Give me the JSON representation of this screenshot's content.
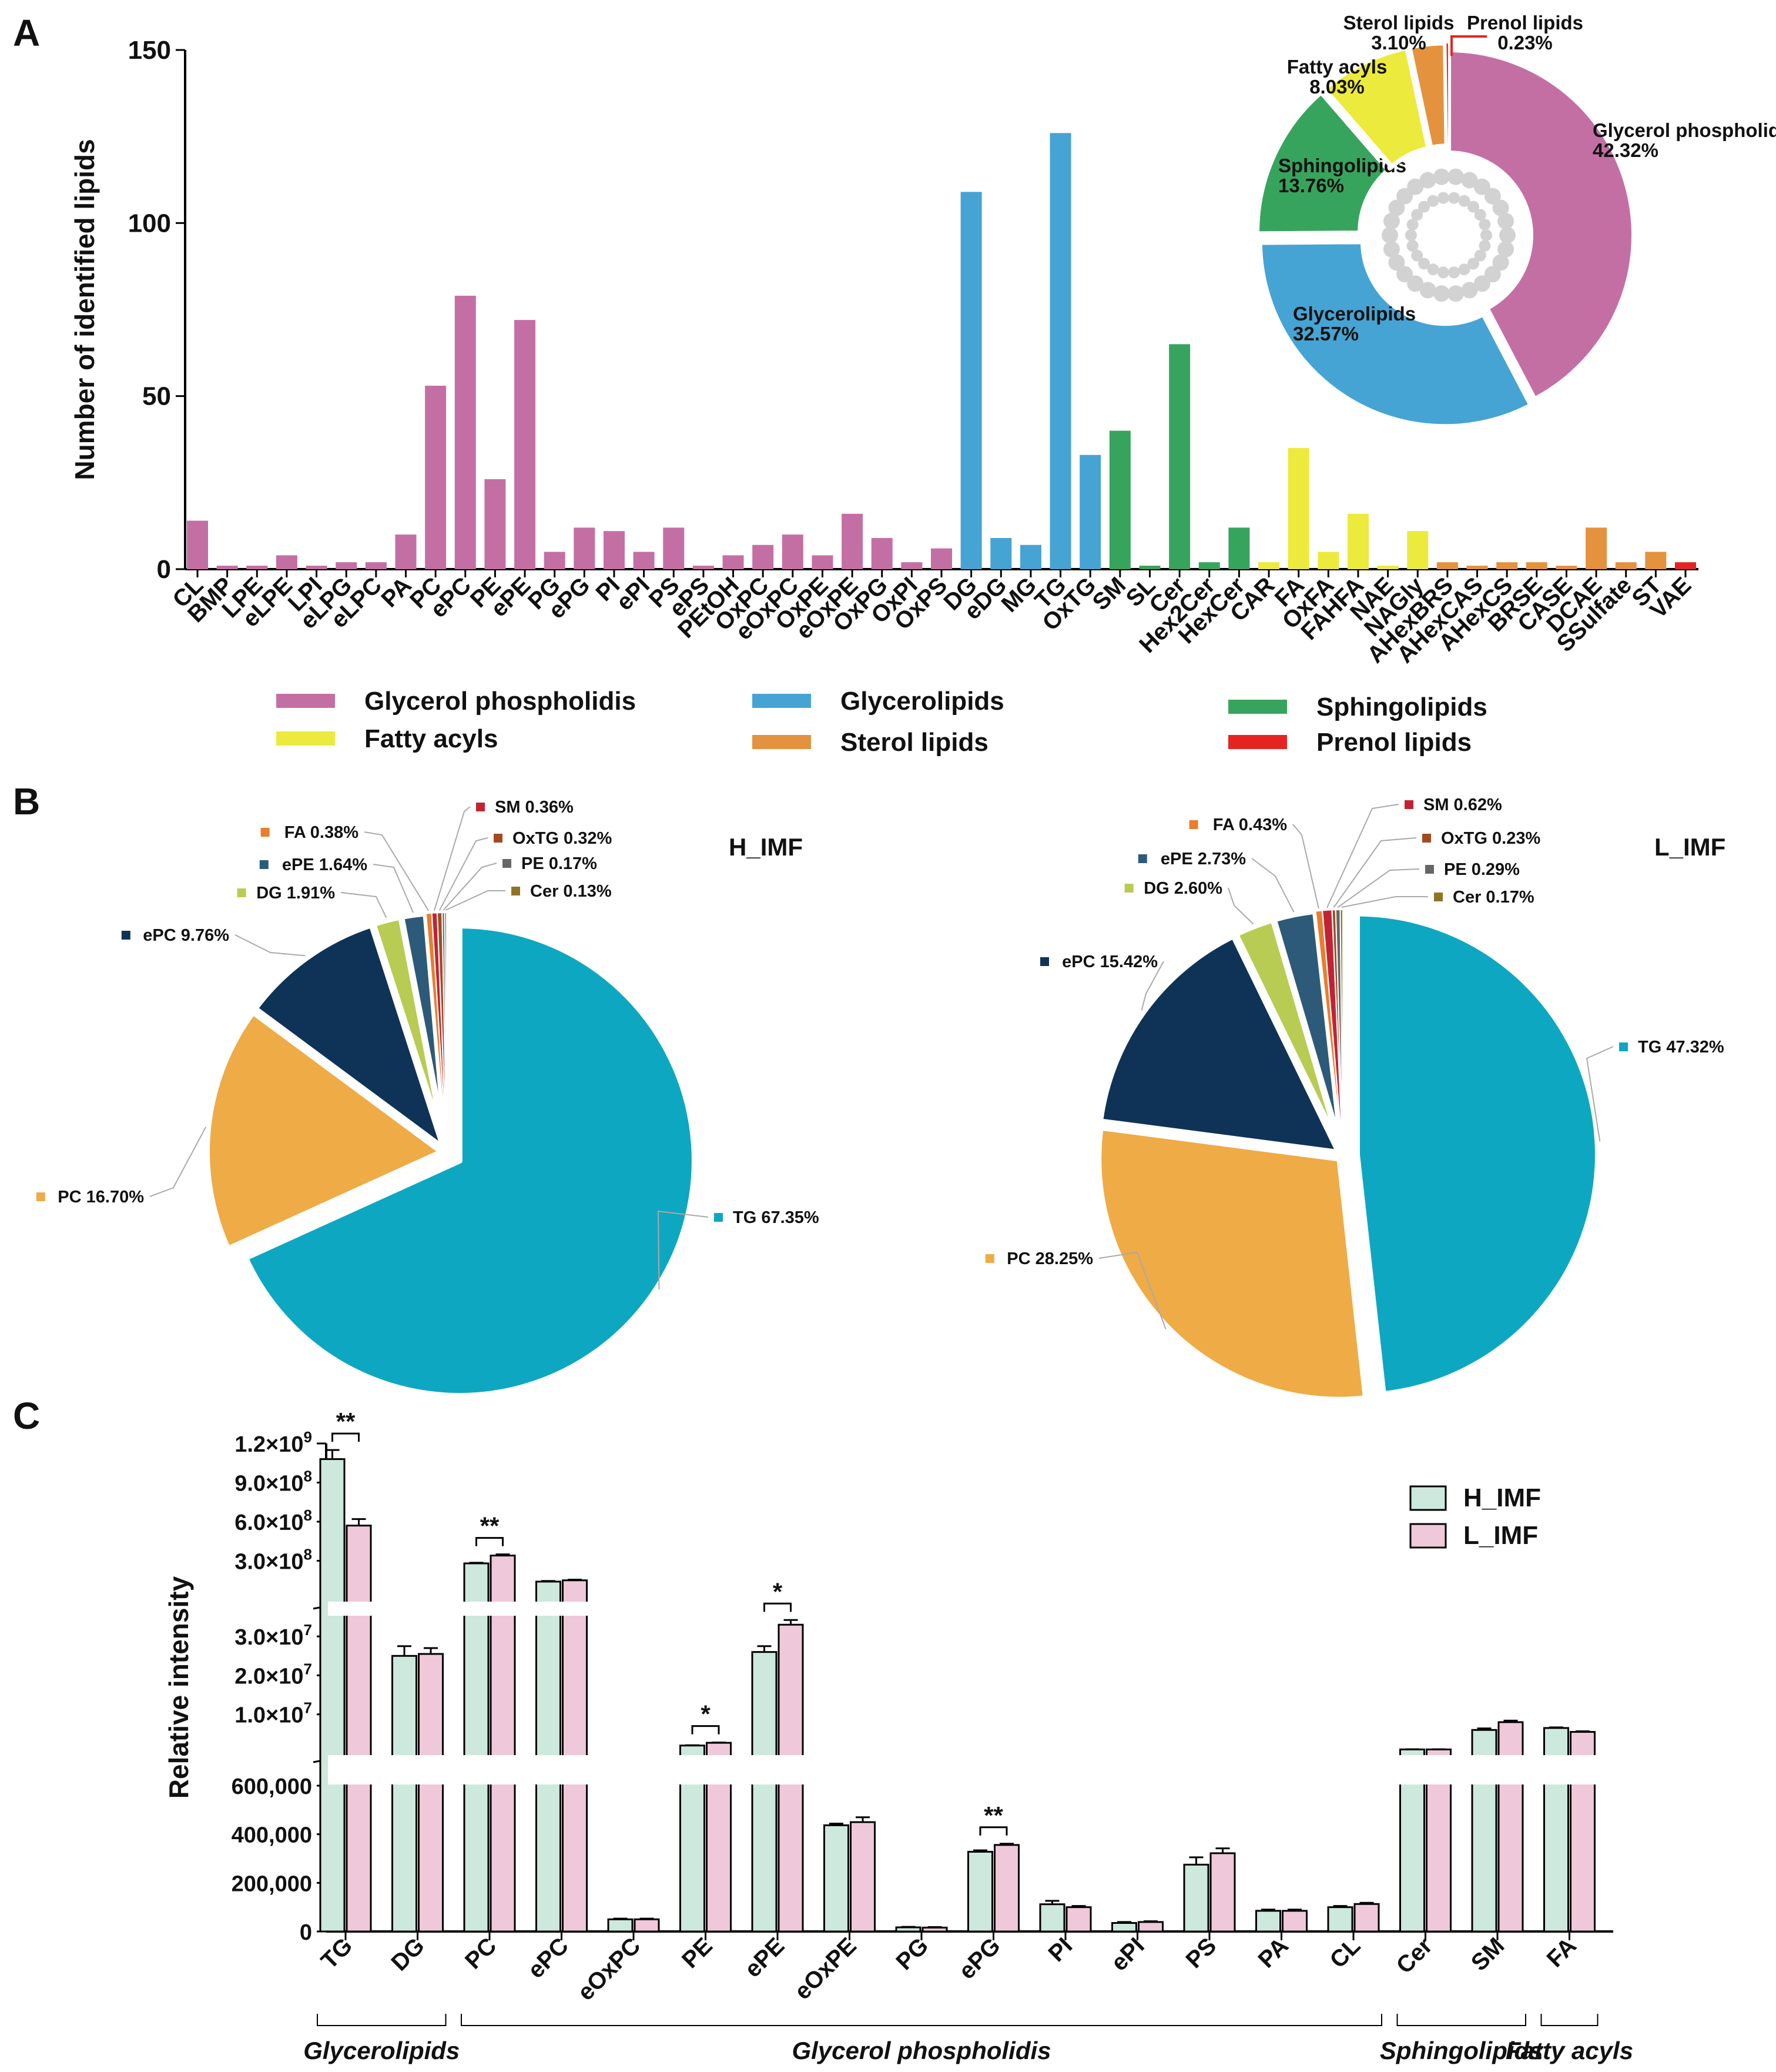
{
  "panels": {
    "a": "A",
    "b": "B",
    "c": "C"
  },
  "chart_data": [
    {
      "id": "A",
      "type": "bar",
      "title": "",
      "xlabel": "",
      "ylabel": "Number of identified lipids",
      "ylim": [
        0,
        150
      ],
      "yticks": [
        "0",
        "50",
        "100",
        "150"
      ],
      "categories": [
        "CL",
        "BMP",
        "LPE",
        "eLPE",
        "LPI",
        "eLPG",
        "eLPC",
        "PA",
        "PC",
        "ePC",
        "PE",
        "ePE",
        "PG",
        "ePG",
        "PI",
        "ePI",
        "PS",
        "ePS",
        "PEtOH",
        "OxPC",
        "eOxPC",
        "OxPE",
        "eOxPE",
        "OxPG",
        "OxPI",
        "OxPS",
        "DG",
        "eDG",
        "MG",
        "TG",
        "OxTG",
        "SM",
        "SL",
        "Cer",
        "Hex2Cer",
        "HexCer",
        "CAR",
        "FA",
        "OxFA",
        "FAHFA",
        "NAE",
        "NAGly",
        "AHexBRS",
        "AHexCAS",
        "AHexCS",
        "BRSE",
        "CASE",
        "DCAE",
        "SSulfate",
        "ST",
        "VAE"
      ],
      "values": [
        14,
        1,
        1,
        4,
        1,
        2,
        2,
        10,
        53,
        79,
        26,
        72,
        5,
        12,
        11,
        5,
        12,
        1,
        4,
        7,
        10,
        4,
        16,
        9,
        2,
        6,
        109,
        9,
        7,
        126,
        33,
        40,
        1,
        65,
        2,
        12,
        2,
        35,
        5,
        16,
        1,
        11,
        2,
        1,
        2,
        2,
        1,
        12,
        2,
        5,
        2
      ],
      "groups": [
        "gp",
        "gp",
        "gp",
        "gp",
        "gp",
        "gp",
        "gp",
        "gp",
        "gp",
        "gp",
        "gp",
        "gp",
        "gp",
        "gp",
        "gp",
        "gp",
        "gp",
        "gp",
        "gp",
        "gp",
        "gp",
        "gp",
        "gp",
        "gp",
        "gp",
        "gp",
        "gl",
        "gl",
        "gl",
        "gl",
        "gl",
        "sp",
        "sp",
        "sp",
        "sp",
        "sp",
        "fa",
        "fa",
        "fa",
        "fa",
        "fa",
        "fa",
        "st",
        "st",
        "st",
        "st",
        "st",
        "st",
        "st",
        "st",
        "pr"
      ],
      "legend": [
        {
          "key": "gp",
          "label": "Glycerol phospholidis",
          "color": "#c46fa4"
        },
        {
          "key": "gl",
          "label": "Glycerolipids",
          "color": "#45a4d3"
        },
        {
          "key": "sp",
          "label": "Sphingolipids",
          "color": "#37a45e"
        },
        {
          "key": "fa",
          "label": "Fatty acyls",
          "color": "#ecea3c"
        },
        {
          "key": "st",
          "label": "Sterol lipids",
          "color": "#e4923e"
        },
        {
          "key": "pr",
          "label": "Prenol lipids",
          "color": "#e52421"
        }
      ]
    },
    {
      "id": "A-inset",
      "type": "pie",
      "variant": "donut",
      "slices": [
        {
          "name": "Glycerol phospholidis",
          "pct": "42.32%",
          "value": 42.32,
          "color": "#c46fa4"
        },
        {
          "name": "Glycerolipids",
          "pct": "32.57%",
          "value": 32.57,
          "color": "#45a4d3"
        },
        {
          "name": "Sphingolipids",
          "pct": "13.76%",
          "value": 13.76,
          "color": "#37a45e"
        },
        {
          "name": "Fatty acyls",
          "pct": "8.03%",
          "value": 8.03,
          "color": "#ecea3c"
        },
        {
          "name": "Sterol lipids",
          "pct": "3.10%",
          "value": 3.1,
          "color": "#e4923e"
        },
        {
          "name": "Prenol lipids",
          "pct": "0.23%",
          "value": 0.23,
          "color": "#e52421"
        }
      ]
    },
    {
      "id": "B-H",
      "type": "pie",
      "title": "H_IMF",
      "slices": [
        {
          "name": "TG",
          "pct": "67.35%",
          "value": 67.35,
          "color": "#0ea7c1"
        },
        {
          "name": "PC",
          "pct": "16.70%",
          "value": 16.7,
          "color": "#efab46"
        },
        {
          "name": "ePC",
          "pct": "9.76%",
          "value": 9.76,
          "color": "#0f3357"
        },
        {
          "name": "DG",
          "pct": "1.91%",
          "value": 1.91,
          "color": "#b8cc53"
        },
        {
          "name": "ePE",
          "pct": "1.64%",
          "value": 1.64,
          "color": "#2d5a78"
        },
        {
          "name": "FA",
          "pct": "0.38%",
          "value": 0.38,
          "color": "#ea7d2e"
        },
        {
          "name": "SM",
          "pct": "0.36%",
          "value": 0.36,
          "color": "#c22334"
        },
        {
          "name": "OxTG",
          "pct": "0.32%",
          "value": 0.32,
          "color": "#a34a20"
        },
        {
          "name": "PE",
          "pct": "0.17%",
          "value": 0.17,
          "color": "#666666"
        },
        {
          "name": "Cer",
          "pct": "0.13%",
          "value": 0.13,
          "color": "#8f7428"
        }
      ]
    },
    {
      "id": "B-L",
      "type": "pie",
      "title": "L_IMF",
      "slices": [
        {
          "name": "TG",
          "pct": "47.32%",
          "value": 47.32,
          "color": "#0ea7c1"
        },
        {
          "name": "PC",
          "pct": "28.25%",
          "value": 28.25,
          "color": "#efab46"
        },
        {
          "name": "ePC",
          "pct": "15.42%",
          "value": 15.42,
          "color": "#0f3357"
        },
        {
          "name": "DG",
          "pct": "2.60%",
          "value": 2.6,
          "color": "#b8cc53"
        },
        {
          "name": "ePE",
          "pct": "2.73%",
          "value": 2.73,
          "color": "#2d5a78"
        },
        {
          "name": "FA",
          "pct": "0.43%",
          "value": 0.43,
          "color": "#ea7d2e"
        },
        {
          "name": "SM",
          "pct": "0.62%",
          "value": 0.62,
          "color": "#c22334"
        },
        {
          "name": "OxTG",
          "pct": "0.23%",
          "value": 0.23,
          "color": "#a34a20"
        },
        {
          "name": "PE",
          "pct": "0.29%",
          "value": 0.29,
          "color": "#666666"
        },
        {
          "name": "Cer",
          "pct": "0.17%",
          "value": 0.17,
          "color": "#8f7428"
        }
      ]
    },
    {
      "id": "C",
      "type": "bar",
      "ylabel": "Relative intensity",
      "axis": "broken",
      "segments": [
        {
          "range": [
            0,
            600000
          ],
          "ticks": [
            0,
            200000,
            400000,
            600000
          ],
          "labels": [
            "0",
            "200,000",
            "400,000",
            "600,000"
          ]
        },
        {
          "range": [
            0,
            35000000
          ],
          "ticks": [
            10000000,
            20000000,
            30000000
          ],
          "labels": [
            "1.0×10",
            "2.0×10",
            "3.0×10"
          ],
          "exp": "7"
        },
        {
          "range": [
            0,
            1200000000
          ],
          "ticks": [
            300000000,
            600000000,
            900000000,
            1200000000
          ],
          "labels": [
            "3.0×10",
            "6.0×10",
            "9.0×10",
            "1.2×10"
          ],
          "exp": [
            "8",
            "8",
            "8",
            "9"
          ]
        }
      ],
      "categories": [
        "TG",
        "DG",
        "PC",
        "ePC",
        "eOxPC",
        "PE",
        "ePE",
        "eOxPE",
        "PG",
        "ePG",
        "PI",
        "ePI",
        "PS",
        "PA",
        "CL",
        "Cer",
        "SM",
        "FA"
      ],
      "series": [
        {
          "name": "H_IMF",
          "color": "#cde8dc",
          "values": [
            1080000000,
            25000000,
            280000000,
            140000000,
            50000,
            2000000,
            26000000,
            437000,
            17000,
            328000,
            112000,
            35000,
            275000,
            85000,
            100000,
            1000000,
            6000000,
            6500000
          ],
          "errors": [
            70000000,
            2500000,
            5000000,
            5000000,
            3000,
            80000,
            1500000,
            7000,
            2000,
            6000,
            14000,
            4000,
            30000,
            5000,
            5000,
            30000,
            400000,
            150000
          ]
        },
        {
          "name": "L_IMF",
          "color": "#efc8da",
          "values": [
            570000000,
            25500000,
            340000000,
            150000000,
            50000,
            2700000,
            33000000,
            450000,
            16000,
            356000,
            100000,
            39000,
            322000,
            85000,
            113000,
            1000000,
            8000000,
            5500000
          ],
          "errors": [
            50000000,
            1500000,
            9000000,
            5000000,
            3000,
            80000,
            1200000,
            20000,
            2000,
            5000,
            5000,
            3000,
            20000,
            5000,
            5000,
            30000,
            400000,
            150000
          ]
        }
      ],
      "significance": [
        {
          "category": "TG",
          "mark": "**"
        },
        {
          "category": "PC",
          "mark": "**"
        },
        {
          "category": "PE",
          "mark": "*"
        },
        {
          "category": "ePE",
          "mark": "*"
        },
        {
          "category": "ePG",
          "mark": "**"
        }
      ],
      "group_labels": [
        {
          "label": "Glycerolipids",
          "from": "TG",
          "to": "DG"
        },
        {
          "label": "Glycerol phospholidis",
          "from": "PC",
          "to": "CL"
        },
        {
          "label": "Sphingolipids",
          "from": "Cer",
          "to": "SM"
        },
        {
          "label": "Fatty acyls",
          "from": "FA",
          "to": "FA"
        }
      ]
    }
  ]
}
